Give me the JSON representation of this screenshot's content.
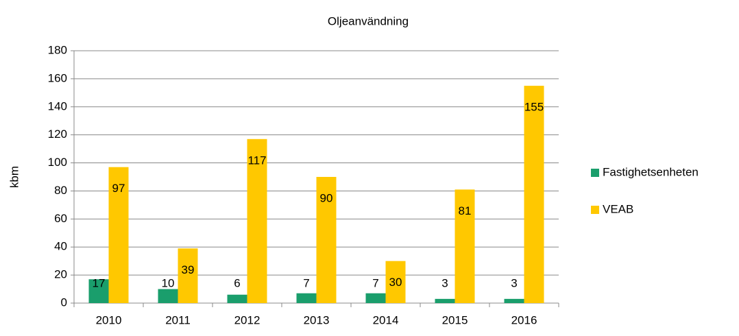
{
  "chart_data": {
    "type": "bar",
    "title": "Oljeanvändning",
    "y_label": "kbm",
    "categories": [
      "2010",
      "2011",
      "2012",
      "2013",
      "2014",
      "2015",
      "2016"
    ],
    "series": [
      {
        "name": "Fastighetsenheten",
        "color": "#1a9e6c",
        "values": [
          17,
          10,
          6,
          7,
          7,
          3,
          3
        ]
      },
      {
        "name": "VEAB",
        "color": "#ffc800",
        "values": [
          97,
          39,
          117,
          90,
          30,
          81,
          155
        ]
      }
    ],
    "ylim": [
      0,
      180
    ],
    "yticks": [
      0,
      20,
      40,
      60,
      80,
      100,
      120,
      140,
      160,
      180
    ],
    "grid": true,
    "legend": "right"
  }
}
